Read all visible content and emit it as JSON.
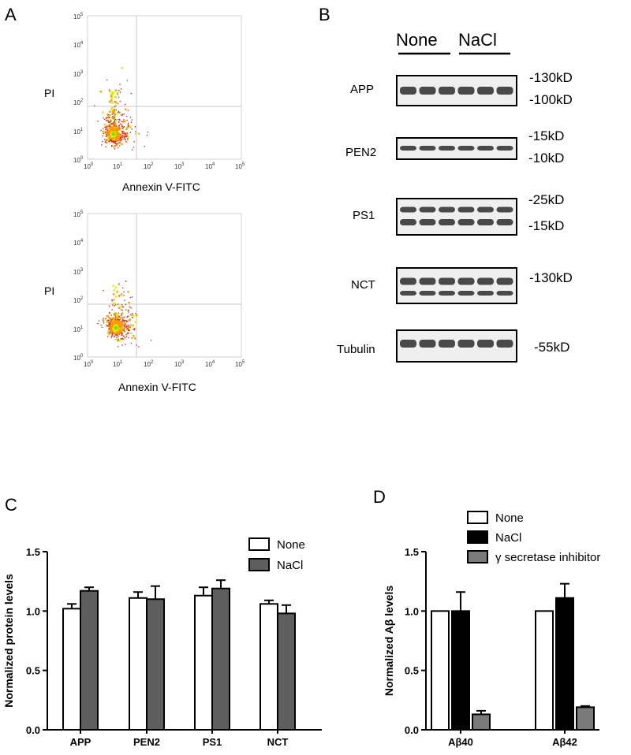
{
  "panels": {
    "a": "A",
    "b": "B",
    "c": "C",
    "d": "D"
  },
  "flow": {
    "ylabel": "PI",
    "xlabel": "Annexin V-FITC",
    "ticks": [
      {
        "base": "10",
        "exp": "0"
      },
      {
        "base": "10",
        "exp": "1"
      },
      {
        "base": "10",
        "exp": "2"
      },
      {
        "base": "10",
        "exp": "3"
      },
      {
        "base": "10",
        "exp": "4"
      },
      {
        "base": "10",
        "exp": "5"
      }
    ]
  },
  "blot": {
    "groups": [
      "None",
      "NaCl"
    ],
    "bands": [
      {
        "label": "APP",
        "markers": [
          "-130kD",
          "-100kD"
        ]
      },
      {
        "label": "PEN2",
        "markers": [
          "-15kD",
          "-10kD"
        ]
      },
      {
        "label": "PS1",
        "markers": [
          "-25kD",
          "-15kD"
        ]
      },
      {
        "label": "NCT",
        "markers": [
          "-130kD"
        ]
      },
      {
        "label": "Tubulin",
        "markers": [
          "-55kD"
        ]
      }
    ]
  },
  "chart_data": [
    {
      "type": "bar",
      "panel": "C",
      "categories": [
        "APP",
        "PEN2",
        "PS1",
        "NCT"
      ],
      "ylabel": "Normalized protein levels",
      "ylim": [
        0,
        1.5
      ],
      "yticks": [
        "0.0",
        "0.5",
        "1.0",
        "1.5"
      ],
      "legend_position": "top-right",
      "series": [
        {
          "name": "None",
          "color": "#ffffff",
          "values": [
            1.02,
            1.11,
            1.13,
            1.06
          ],
          "errors": [
            0.04,
            0.05,
            0.07,
            0.03
          ]
        },
        {
          "name": "NaCl",
          "color": "#5e5e5e",
          "values": [
            1.17,
            1.1,
            1.19,
            0.98
          ],
          "errors": [
            0.03,
            0.11,
            0.07,
            0.07
          ]
        }
      ]
    },
    {
      "type": "bar",
      "panel": "D",
      "categories": [
        "Aβ40",
        "Aβ42"
      ],
      "ylabel": "Normalized  Aβ  levels",
      "ylim": [
        0,
        1.5
      ],
      "yticks": [
        "0.0",
        "0.5",
        "1.0",
        "1.5"
      ],
      "legend_position": "top-right",
      "series": [
        {
          "name": "None",
          "color": "#ffffff",
          "values": [
            1.0,
            1.0
          ],
          "errors": [
            0,
            0
          ]
        },
        {
          "name": "NaCl",
          "color": "#000000",
          "values": [
            1.0,
            1.11
          ],
          "errors": [
            0.16,
            0.12
          ]
        },
        {
          "name": "γ secretase inhibitor",
          "color": "#7a7a7a",
          "values": [
            0.13,
            0.19
          ],
          "errors": [
            0.03,
            0.01
          ]
        }
      ]
    }
  ]
}
